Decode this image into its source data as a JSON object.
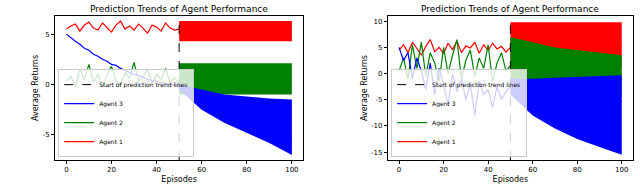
{
  "chart_data": [
    {
      "type": "line",
      "title": "Prediction Trends of Agent Performance",
      "x_label": "Episodes",
      "y_label": "Average Returns",
      "xlim": [
        -5,
        105
      ],
      "ylim": [
        -7.5,
        6.8
      ],
      "xticks": [
        0,
        20,
        40,
        60,
        80,
        100
      ],
      "yticks": [
        -5,
        0,
        5
      ],
      "legend": "lower left",
      "series": [
        {
          "name": "Agent 1",
          "color": "red",
          "x": [
            0,
            2,
            4,
            6,
            8,
            10,
            12,
            14,
            16,
            18,
            20,
            22,
            24,
            26,
            28,
            30,
            32,
            34,
            36,
            38,
            40,
            42,
            44,
            46,
            48,
            50
          ],
          "values": [
            5.5,
            5.8,
            6.0,
            5.3,
            5.9,
            6.2,
            5.6,
            5.4,
            6.1,
            5.7,
            5.2,
            5.9,
            6.3,
            5.5,
            5.8,
            5.4,
            6.0,
            5.6,
            5.1,
            5.9,
            5.7,
            5.3,
            6.1,
            5.6,
            5.4,
            5.5
          ],
          "prediction": {
            "x": [
              50,
              60,
              70,
              80,
              90,
              100
            ],
            "values": [
              5.2,
              5.2,
              5.3,
              5.3,
              5.3,
              5.3
            ],
            "lower": [
              4.3,
              4.3,
              4.3,
              4.3,
              4.3,
              4.3
            ],
            "upper": [
              6.3,
              6.3,
              6.3,
              6.3,
              6.3,
              6.3
            ]
          }
        },
        {
          "name": "Agent 2",
          "color": "green",
          "x": [
            0,
            2,
            4,
            6,
            8,
            10,
            12,
            14,
            16,
            18,
            20,
            22,
            24,
            26,
            28,
            30,
            32,
            34,
            36,
            38,
            40,
            42,
            44,
            46,
            48,
            50
          ],
          "values": [
            0.3,
            0.8,
            -0.2,
            1.5,
            0.5,
            2.0,
            0.2,
            1.0,
            -0.3,
            0.9,
            1.8,
            0.4,
            -0.1,
            1.2,
            0.6,
            2.2,
            0.3,
            0.8,
            1.5,
            0.1,
            1.0,
            0.5,
            1.6,
            0.2,
            0.7,
            0.0
          ],
          "prediction": {
            "x": [
              50,
              60,
              70,
              80,
              90,
              100
            ],
            "values": [
              0.2,
              0.2,
              0.2,
              0.2,
              0.2,
              0.2
            ],
            "lower": [
              -1.0,
              -1.0,
              -1.0,
              -1.0,
              -1.0,
              -1.0
            ],
            "upper": [
              2.1,
              2.1,
              2.1,
              2.1,
              2.1,
              2.1
            ]
          }
        },
        {
          "name": "Agent 3",
          "color": "blue",
          "x": [
            0,
            2,
            4,
            6,
            8,
            10,
            12,
            14,
            16,
            18,
            20,
            22,
            24,
            26,
            28,
            30,
            32,
            34,
            36,
            38,
            40,
            42,
            44,
            46,
            48,
            50
          ],
          "values": [
            5.0,
            4.6,
            4.3,
            4.0,
            3.6,
            3.4,
            3.0,
            2.8,
            2.5,
            2.3,
            2.0,
            1.9,
            1.6,
            1.4,
            1.2,
            1.0,
            0.9,
            0.7,
            0.5,
            0.4,
            0.3,
            0.2,
            0.1,
            0.0,
            -0.1,
            -0.2
          ],
          "prediction": {
            "x": [
              50,
              60,
              70,
              80,
              90,
              100
            ],
            "values": [
              -0.3,
              -1.5,
              -2.5,
              -3.4,
              -4.3,
              -5.2
            ],
            "lower": [
              -0.5,
              -2.5,
              -3.8,
              -4.8,
              -5.8,
              -7.0
            ],
            "upper": [
              0.0,
              -0.5,
              -1.0,
              -1.2,
              -1.4,
              -1.5
            ]
          }
        },
        {
          "name": "Start of prediction trend lines",
          "type": "vline",
          "x": 50,
          "color": "black",
          "line_style": "dashed"
        }
      ]
    },
    {
      "type": "line",
      "title": "Prediction Trends of Agent Performance",
      "x_label": "Episodes",
      "y_label": "Average Returns",
      "xlim": [
        -5,
        105
      ],
      "ylim": [
        -16.5,
        11
      ],
      "xticks": [
        0,
        20,
        40,
        60,
        80,
        100
      ],
      "yticks": [
        -15,
        -10,
        -5,
        0,
        5,
        10
      ],
      "legend": "lower left",
      "series": [
        {
          "name": "Agent 1",
          "color": "red",
          "x": [
            0,
            2,
            4,
            6,
            8,
            10,
            12,
            14,
            16,
            18,
            20,
            22,
            24,
            26,
            28,
            30,
            32,
            34,
            36,
            38,
            40,
            42,
            44,
            46,
            48,
            50
          ],
          "values": [
            4.5,
            5.5,
            4.0,
            6.0,
            4.8,
            3.5,
            5.2,
            6.5,
            4.2,
            5.0,
            3.8,
            5.8,
            4.6,
            6.2,
            4.0,
            5.3,
            4.9,
            6.0,
            3.9,
            5.5,
            4.4,
            5.8,
            4.7,
            5.2,
            4.1,
            5.0
          ],
          "prediction": {
            "x": [
              50,
              60,
              70,
              80,
              90,
              100
            ],
            "values": [
              5.0,
              5.0,
              5.0,
              5.0,
              5.0,
              5.0
            ],
            "lower": [
              1.0,
              1.0,
              1.0,
              1.0,
              1.0,
              1.0
            ],
            "upper": [
              9.8,
              9.8,
              9.8,
              9.8,
              9.8,
              9.8
            ]
          }
        },
        {
          "name": "Agent 2",
          "color": "green",
          "x": [
            0,
            2,
            4,
            6,
            8,
            10,
            12,
            14,
            16,
            18,
            20,
            22,
            24,
            26,
            28,
            30,
            32,
            34,
            36,
            38,
            40,
            42,
            44,
            46,
            48,
            50
          ],
          "values": [
            0.5,
            3.0,
            -1.0,
            5.5,
            1.0,
            6.0,
            -0.5,
            4.0,
            2.0,
            -1.5,
            5.0,
            0.0,
            3.5,
            6.5,
            -1.0,
            2.5,
            4.5,
            -0.5,
            3.0,
            1.0,
            5.5,
            -1.5,
            2.0,
            4.0,
            0.5,
            1.5
          ],
          "prediction": {
            "x": [
              50,
              60,
              70,
              80,
              90,
              100
            ],
            "values": [
              1.0,
              0.8,
              0.6,
              0.4,
              0.2,
              0.0
            ],
            "lower": [
              -1.5,
              -2.5,
              -3.0,
              -3.5,
              -4.0,
              -4.5
            ],
            "upper": [
              7.0,
              6.0,
              5.0,
              4.5,
              4.0,
              3.5
            ]
          }
        },
        {
          "name": "Agent 3",
          "color": "blue",
          "x": [
            0,
            2,
            4,
            6,
            8,
            10,
            12,
            14,
            16,
            18,
            20,
            22,
            24,
            26,
            28,
            30,
            32,
            34,
            36,
            38,
            40,
            42,
            44,
            46,
            48,
            50
          ],
          "values": [
            5.0,
            2.5,
            4.0,
            -1.0,
            3.0,
            0.5,
            -3.0,
            2.0,
            -4.0,
            1.0,
            -2.0,
            -6.0,
            0.0,
            -3.5,
            -1.0,
            -5.0,
            -2.0,
            -8.0,
            -1.5,
            -4.0,
            -3.0,
            -6.5,
            -2.5,
            -5.0,
            -3.5,
            -2.5
          ],
          "prediction": {
            "x": [
              50,
              60,
              70,
              80,
              90,
              100
            ],
            "values": [
              -2.5,
              -3.3,
              -3.9,
              -4.4,
              -4.8,
              -5.2
            ],
            "lower": [
              -4.0,
              -8.0,
              -10.5,
              -12.5,
              -14.0,
              -15.5
            ],
            "upper": [
              -1.0,
              -1.0,
              -0.8,
              -0.6,
              -0.5,
              -0.3
            ]
          }
        },
        {
          "name": "Start of prediction trend lines",
          "type": "vline",
          "x": 50,
          "color": "black",
          "line_style": "dashed"
        }
      ]
    }
  ]
}
